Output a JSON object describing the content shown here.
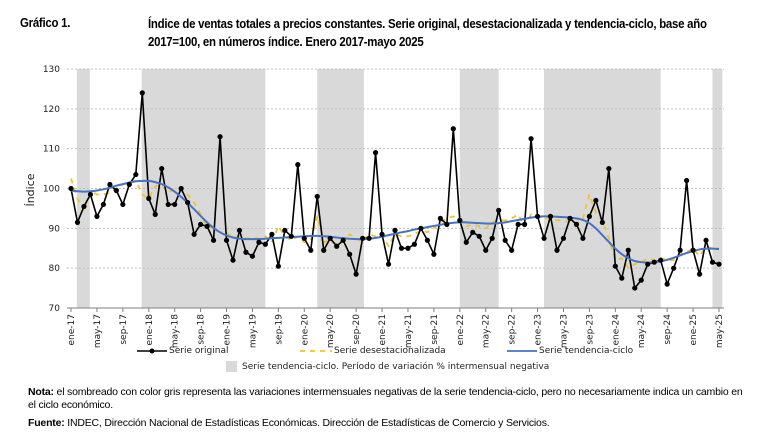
{
  "header": {
    "figure_number": "Gráfico 1.",
    "title": "Índice de ventas totales a precios constantes. Serie original, desestacionalizada y tendencia-ciclo, base año 2017=100, en números índice. Enero 2017-mayo 2025"
  },
  "footer": {
    "note_label": "Nota:",
    "note_text": " el sombreado con color gris representa las variaciones intermensuales negativas de la serie tendencia-ciclo, pero no necesariamente indica un cambio en el ciclo económico.",
    "source_label": "Fuente:",
    "source_text": " INDEC, Dirección Nacional de Estadísticas Económicas. Dirección de Estadísticas de Comercio y Servicios."
  },
  "colors": {
    "original": "#000000",
    "seasonally_adjusted": "#F2C12E",
    "trend": "#4472C4",
    "shade": "#D9D9D9",
    "grid": "#BFBFBF"
  },
  "chart_data": {
    "type": "line",
    "title": "Índice de ventas totales a precios constantes",
    "xlabel": "",
    "ylabel": "Índice",
    "ylim": [
      70,
      130
    ],
    "yticks": [
      70,
      80,
      90,
      100,
      110,
      120,
      130
    ],
    "grid": true,
    "legend_position": "bottom",
    "x_start": "ene-17",
    "x_end": "may-25",
    "xtick_labels": [
      "ene-17",
      "may-17",
      "sep-17",
      "ene-18",
      "may-18",
      "sep-18",
      "ene-19",
      "may-19",
      "sep-19",
      "ene-20",
      "may-20",
      "sep-20",
      "ene-21",
      "may-21",
      "sep-21",
      "ene-22",
      "may-22",
      "sep-22",
      "ene-23",
      "may-23",
      "sep-23",
      "ene-24",
      "may-24",
      "sep-24",
      "ene-25",
      "may-25"
    ],
    "xtick_every_months": 4,
    "legend": [
      {
        "key": "original",
        "label": "Serie original"
      },
      {
        "key": "seasonally_adjusted",
        "label": "Serie desestacionalizada"
      },
      {
        "key": "trend",
        "label": "Serie tendencia-ciclo"
      },
      {
        "key": "shade",
        "label": "Serie tendencia-ciclo. Período de variación % intermensual negativa"
      }
    ],
    "shaded_periods_month_index": [
      [
        0.9,
        2.9
      ],
      [
        10.9,
        30.0
      ],
      [
        38.0,
        45.2
      ],
      [
        60.0,
        66.0
      ],
      [
        73.0,
        91.0
      ],
      [
        99.0,
        100.5
      ]
    ],
    "series": [
      {
        "name": "Serie original",
        "key": "original",
        "values": [
          100,
          91.5,
          95.5,
          98.5,
          93,
          96,
          101,
          99.5,
          96,
          101,
          103.5,
          124,
          97.5,
          93.5,
          105,
          96,
          96,
          100,
          96.5,
          88.5,
          91,
          90.5,
          87,
          113,
          87,
          82,
          89.5,
          84,
          83,
          86.5,
          86,
          88.5,
          80.5,
          89.5,
          88,
          106,
          87.5,
          84.5,
          98,
          84.5,
          87.5,
          85.5,
          87,
          83.5,
          78.5,
          87.5,
          87.5,
          109,
          88.5,
          81,
          89.5,
          85,
          85,
          86,
          90,
          87,
          83.5,
          92.5,
          91,
          115,
          92,
          86.5,
          89,
          88,
          84.5,
          87.5,
          94.5,
          87,
          84.5,
          91,
          91,
          112.5,
          93,
          87.5,
          93,
          84.5,
          87.5,
          92.5,
          91,
          87.5,
          93,
          97,
          91.5,
          105,
          80.5,
          77.5,
          84.5,
          75,
          77,
          81,
          81.5,
          82,
          76,
          80,
          84.5,
          102,
          84.5,
          78.5,
          87,
          81.5,
          81
        ]
      },
      {
        "name": "Serie desestacionalizada",
        "key": "seasonally_adjusted",
        "values": [
          102.5,
          97.5,
          94.5,
          99.5,
          98.5,
          98.5,
          99,
          100,
          101,
          101.5,
          102,
          98.5,
          97.5,
          100.5,
          101,
          99,
          100,
          99.5,
          98.5,
          96.5,
          93.5,
          90.5,
          90,
          89,
          89,
          87.5,
          88,
          87.5,
          87.5,
          87.5,
          88,
          86.5,
          90.5,
          88,
          87,
          88,
          86.5,
          87,
          93,
          86.5,
          87,
          86,
          87,
          88.5,
          87.5,
          86.5,
          88.5,
          88,
          88.5,
          85.5,
          88.5,
          88,
          88,
          88.5,
          89.5,
          89,
          90,
          91.5,
          92.5,
          93,
          92.5,
          90.5,
          91,
          90.5,
          90,
          91.5,
          92,
          92,
          92.5,
          93.5,
          90.5,
          93.5,
          93,
          92.5,
          92.5,
          92,
          92,
          91.5,
          91,
          92.5,
          98.5,
          94,
          92,
          87.5,
          82,
          82.5,
          80,
          81,
          81.5,
          82.5,
          82,
          82.5,
          82,
          82,
          83.5,
          84,
          85,
          83,
          85.5,
          85,
          85
        ]
      },
      {
        "name": "Serie tendencia-ciclo",
        "key": "trend",
        "values": [
          99.5,
          99.3,
          99.2,
          99.3,
          99.5,
          99.8,
          100.2,
          100.7,
          101.1,
          101.5,
          101.8,
          101.9,
          101.9,
          101.6,
          101.1,
          100.3,
          99.2,
          97.9,
          96.4,
          94.8,
          93.1,
          91.5,
          90.1,
          89.0,
          88.2,
          87.7,
          87.4,
          87.3,
          87.3,
          87.3,
          87.4,
          87.5,
          87.6,
          87.7,
          87.8,
          87.9,
          88.0,
          88.1,
          88.1,
          88.0,
          87.9,
          87.7,
          87.5,
          87.4,
          87.3,
          87.3,
          87.4,
          87.6,
          87.9,
          88.3,
          88.6,
          89.0,
          89.3,
          89.7,
          90.0,
          90.3,
          90.6,
          90.9,
          91.2,
          91.4,
          91.5,
          91.5,
          91.4,
          91.3,
          91.2,
          91.2,
          91.3,
          91.5,
          91.8,
          92.1,
          92.4,
          92.7,
          92.9,
          93.0,
          93.0,
          92.9,
          92.8,
          92.7,
          92.5,
          92.1,
          91.3,
          90.0,
          88.3,
          86.6,
          84.9,
          83.5,
          82.5,
          81.8,
          81.5,
          81.4,
          81.5,
          81.7,
          82.1,
          82.6,
          83.2,
          83.8,
          84.3,
          84.7,
          84.9,
          84.9,
          84.8
        ]
      }
    ]
  }
}
